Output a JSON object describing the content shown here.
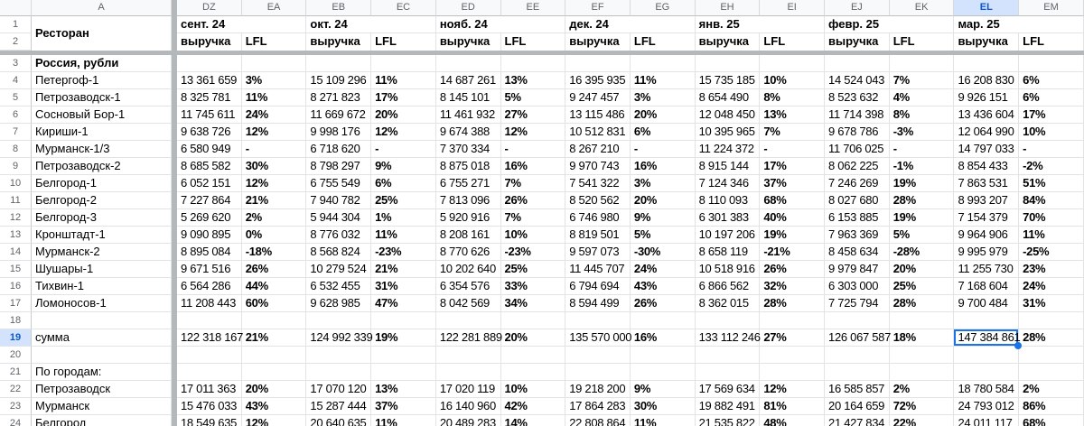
{
  "sheet": {
    "a_col_letter": "A",
    "col_letters": [
      "DZ",
      "EA",
      "EB",
      "EC",
      "ED",
      "EE",
      "EF",
      "EG",
      "EH",
      "EI",
      "EJ",
      "EK",
      "EL",
      "EM"
    ],
    "selected_col_letter": "EL",
    "selected_row_number": "19",
    "selected_cell": {
      "col": "EL",
      "row": 19,
      "value": "147 384 861"
    },
    "row_numbers": [
      "1",
      "2",
      "3",
      "4",
      "5",
      "6",
      "7",
      "8",
      "9",
      "10",
      "11",
      "12",
      "13",
      "14",
      "15",
      "16",
      "17",
      "18",
      "19",
      "20",
      "21",
      "22",
      "23",
      "24"
    ],
    "labels": {
      "restaurant_header": "Ресторан",
      "revenue": "выручка",
      "lfl": "LFL",
      "section_russia": "Россия, рубли",
      "sum": "сумма",
      "by_city": "По городам:"
    },
    "months": [
      "сент. 24",
      "окт. 24",
      "нояб. 24",
      "дек. 24",
      "янв. 25",
      "февр. 25",
      "мар. 25"
    ],
    "restaurants": [
      {
        "row": 4,
        "name": "Петергоф-1",
        "revenue": [
          "13 361 659",
          "15 109 296",
          "14 687 261",
          "16 395 935",
          "15 735 185",
          "14 524 043",
          "16 208 830"
        ],
        "lfl": [
          "3%",
          "11%",
          "13%",
          "11%",
          "10%",
          "7%",
          "6%"
        ]
      },
      {
        "row": 5,
        "name": "Петрозаводск-1",
        "revenue": [
          "8 325 781",
          "8 271 823",
          "8 145 101",
          "9 247 457",
          "8 654 490",
          "8 523 632",
          "9 926 151"
        ],
        "lfl": [
          "11%",
          "17%",
          "5%",
          "3%",
          "8%",
          "4%",
          "6%"
        ]
      },
      {
        "row": 6,
        "name": "Сосновый Бор-1",
        "revenue": [
          "11 745 611",
          "11 669 672",
          "11 461 932",
          "13 115 486",
          "12 048 450",
          "11 714 398",
          "13 436 604"
        ],
        "lfl": [
          "24%",
          "20%",
          "27%",
          "20%",
          "13%",
          "8%",
          "17%"
        ]
      },
      {
        "row": 7,
        "name": "Кириши-1",
        "revenue": [
          "9 638 726",
          "9 998 176",
          "9 674 388",
          "10 512 831",
          "10 395 965",
          "9 678 786",
          "12 064 990"
        ],
        "lfl": [
          "12%",
          "12%",
          "12%",
          "6%",
          "7%",
          "-3%",
          "10%"
        ]
      },
      {
        "row": 8,
        "name": "Мурманск-1/3",
        "revenue": [
          "6 580 949",
          "6 718 620",
          "7 370 334",
          "8 267 210",
          "11 224 372",
          "11 706 025",
          "14 797 033"
        ],
        "lfl": [
          "-",
          "-",
          "-",
          "-",
          "-",
          "-",
          "-"
        ]
      },
      {
        "row": 9,
        "name": "Петрозаводск-2",
        "revenue": [
          "8 685 582",
          "8 798 297",
          "8 875 018",
          "9 970 743",
          "8 915 144",
          "8 062 225",
          "8 854 433"
        ],
        "lfl": [
          "30%",
          "9%",
          "16%",
          "16%",
          "17%",
          "-1%",
          "-2%"
        ]
      },
      {
        "row": 10,
        "name": "Белгород-1",
        "revenue": [
          "6 052 151",
          "6 755 549",
          "6 755 271",
          "7 541 322",
          "7 124 346",
          "7 246 269",
          "7 863 531"
        ],
        "lfl": [
          "12%",
          "6%",
          "7%",
          "3%",
          "37%",
          "19%",
          "51%"
        ]
      },
      {
        "row": 11,
        "name": "Белгород-2",
        "revenue": [
          "7 227 864",
          "7 940 782",
          "7 813 096",
          "8 520 562",
          "8 110 093",
          "8 027 680",
          "8 993 207"
        ],
        "lfl": [
          "21%",
          "25%",
          "26%",
          "20%",
          "68%",
          "28%",
          "84%"
        ]
      },
      {
        "row": 12,
        "name": "Белгород-3",
        "revenue": [
          "5 269 620",
          "5 944 304",
          "5 920 916",
          "6 746 980",
          "6 301 383",
          "6 153 885",
          "7 154 379"
        ],
        "lfl": [
          "2%",
          "1%",
          "7%",
          "9%",
          "40%",
          "19%",
          "70%"
        ]
      },
      {
        "row": 13,
        "name": "Кронштадт-1",
        "revenue": [
          "9 090 895",
          "8 776 032",
          "8 208 161",
          "8 819 501",
          "10 197 206",
          "7 963 369",
          "9 964 906"
        ],
        "lfl": [
          "0%",
          "11%",
          "10%",
          "5%",
          "19%",
          "5%",
          "11%"
        ]
      },
      {
        "row": 14,
        "name": "Мурманск-2",
        "revenue": [
          "8 895 084",
          "8 568 824",
          "8 770 626",
          "9 597 073",
          "8 658 119",
          "8 458 634",
          "9 995 979"
        ],
        "lfl": [
          "-18%",
          "-23%",
          "-23%",
          "-30%",
          "-21%",
          "-28%",
          "-25%"
        ]
      },
      {
        "row": 15,
        "name": "Шушары-1",
        "revenue": [
          "9 671 516",
          "10 279 524",
          "10 202 640",
          "11 445 707",
          "10 518 916",
          "9 979 847",
          "11 255 730"
        ],
        "lfl": [
          "26%",
          "21%",
          "25%",
          "24%",
          "26%",
          "20%",
          "23%"
        ]
      },
      {
        "row": 16,
        "name": "Тихвин-1",
        "revenue": [
          "6 564 286",
          "6 532 455",
          "6 354 576",
          "6 794 694",
          "6 866 562",
          "6 303 000",
          "7 168 604"
        ],
        "lfl": [
          "44%",
          "31%",
          "33%",
          "43%",
          "32%",
          "25%",
          "24%"
        ]
      },
      {
        "row": 17,
        "name": "Ломоносов-1",
        "revenue": [
          "11 208 443",
          "9 628 985",
          "8 042 569",
          "8 594 499",
          "8 362 015",
          "7 725 794",
          "9 700 484"
        ],
        "lfl": [
          "60%",
          "47%",
          "34%",
          "26%",
          "28%",
          "28%",
          "31%"
        ]
      }
    ],
    "sum_row": {
      "row": 19,
      "revenue": [
        "122 318 167",
        "124 992 339",
        "122 281 889",
        "135 570 000",
        "133 112 246",
        "126 067 587",
        "147 384 861"
      ],
      "lfl": [
        "21%",
        "19%",
        "20%",
        "16%",
        "27%",
        "18%",
        "28%"
      ]
    },
    "cities": [
      {
        "row": 22,
        "name": "Петрозаводск",
        "revenue": [
          "17 011 363",
          "17 070 120",
          "17 020 119",
          "19 218 200",
          "17 569 634",
          "16 585 857",
          "18 780 584"
        ],
        "lfl": [
          "20%",
          "13%",
          "10%",
          "9%",
          "12%",
          "2%",
          "2%"
        ]
      },
      {
        "row": 23,
        "name": "Мурманск",
        "revenue": [
          "15 476 033",
          "15 287 444",
          "16 140 960",
          "17 864 283",
          "19 882 491",
          "20 164 659",
          "24 793 012"
        ],
        "lfl": [
          "43%",
          "37%",
          "42%",
          "30%",
          "81%",
          "72%",
          "86%"
        ]
      },
      {
        "row": 24,
        "name": "Белгород",
        "revenue": [
          "18 549 635",
          "20 640 635",
          "20 489 283",
          "22 808 864",
          "21 535 822",
          "21 427 834",
          "24 011 117"
        ],
        "lfl": [
          "12%",
          "11%",
          "14%",
          "11%",
          "48%",
          "22%",
          "68%"
        ]
      }
    ],
    "empty_row_numbers": [
      18,
      20
    ],
    "colors": {
      "selection_border": "#1a73e8",
      "selected_header_bg": "#d3e3fd",
      "selected_header_text": "#0b57d0",
      "gridline": "#e1e3e4",
      "frozen_divider": "#b5b8bb",
      "header_text": "#5f6368"
    }
  }
}
